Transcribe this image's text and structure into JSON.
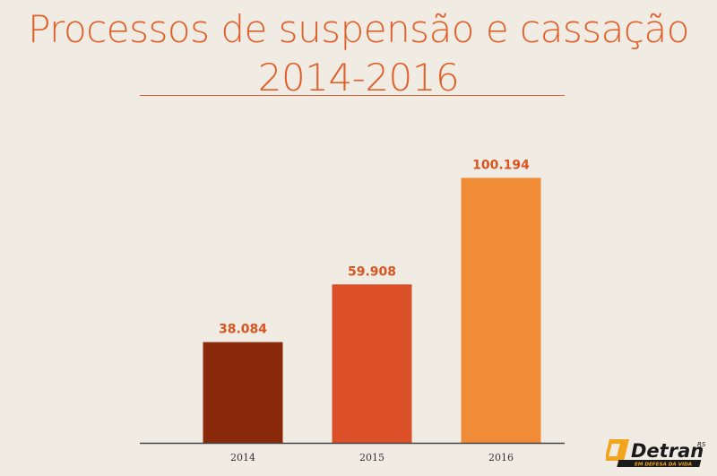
{
  "title_line1": "Processos de suspensão e cassação",
  "title_line2": "2014-2016",
  "chart_data": {
    "type": "bar",
    "title": "Processos de suspensão e cassação 2014-2016",
    "categories": [
      "2014",
      "2015",
      "2016"
    ],
    "values": [
      38084,
      59908,
      100194
    ],
    "value_labels": [
      "38.084",
      "59.908",
      "100.194"
    ],
    "colors": [
      "#8a280a",
      "#db5028",
      "#f08c37"
    ],
    "label_color": "#d9541f",
    "tick_color": "#333333",
    "axis_color": "#444444",
    "ylim": [
      0,
      120000
    ],
    "grid": false,
    "legend": "none"
  },
  "logo": {
    "text": "Detran",
    "suffix": "RS",
    "tagline": "EM DEFESA DA VIDA"
  }
}
